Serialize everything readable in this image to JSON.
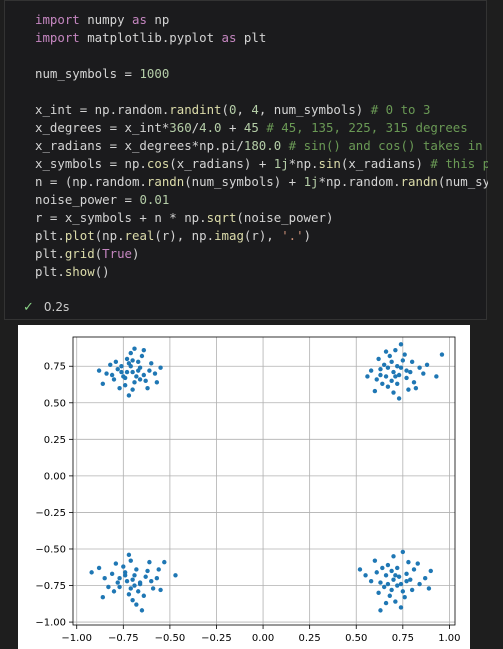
{
  "cell": {
    "code_lines": [
      [
        [
          "kw",
          "import"
        ],
        [
          "op",
          " numpy "
        ],
        [
          "kw",
          "as"
        ],
        [
          "op",
          " np"
        ]
      ],
      [
        [
          "kw",
          "import"
        ],
        [
          "op",
          " matplotlib.pyplot "
        ],
        [
          "kw",
          "as"
        ],
        [
          "op",
          " plt"
        ]
      ],
      [],
      [
        [
          "op",
          "num_symbols = "
        ],
        [
          "num",
          "1000"
        ]
      ],
      [],
      [
        [
          "op",
          "x_int = np.random."
        ],
        [
          "fn",
          "randint"
        ],
        [
          "op",
          "("
        ],
        [
          "num",
          "0"
        ],
        [
          "op",
          ", "
        ],
        [
          "num",
          "4"
        ],
        [
          "op",
          ", num_symbols) "
        ],
        [
          "cm",
          "# 0 to 3"
        ]
      ],
      [
        [
          "op",
          "x_degrees = x_int*"
        ],
        [
          "num",
          "360"
        ],
        [
          "op",
          "/"
        ],
        [
          "num",
          "4.0"
        ],
        [
          "op",
          " + "
        ],
        [
          "num",
          "45"
        ],
        [
          "op",
          " "
        ],
        [
          "cm",
          "# 45, 135, 225, 315 degrees"
        ]
      ],
      [
        [
          "op",
          "x_radians = x_degrees*np.pi/"
        ],
        [
          "num",
          "180.0"
        ],
        [
          "op",
          " "
        ],
        [
          "cm",
          "# sin() and cos() takes in radians"
        ]
      ],
      [
        [
          "op",
          "x_symbols = np."
        ],
        [
          "fn",
          "cos"
        ],
        [
          "op",
          "(x_radians) + "
        ],
        [
          "num",
          "1j"
        ],
        [
          "op",
          "*np."
        ],
        [
          "fn",
          "sin"
        ],
        [
          "op",
          "(x_radians) "
        ],
        [
          "cm",
          "# this produces our QPSK complex symbols"
        ]
      ],
      [
        [
          "op",
          "n = (np.random."
        ],
        [
          "fn",
          "randn"
        ],
        [
          "op",
          "(num_symbols) + "
        ],
        [
          "num",
          "1j"
        ],
        [
          "op",
          "*np.random."
        ],
        [
          "fn",
          "randn"
        ],
        [
          "op",
          "(num_symbols))"
        ]
      ],
      [
        [
          "op",
          "noise_power = "
        ],
        [
          "num",
          "0.01"
        ]
      ],
      [
        [
          "op",
          "r = x_symbols + n * np."
        ],
        [
          "fn",
          "sqrt"
        ],
        [
          "op",
          "(noise_power)"
        ]
      ],
      [
        [
          "op",
          "plt."
        ],
        [
          "fn",
          "plot"
        ],
        [
          "op",
          "(np."
        ],
        [
          "fn",
          "real"
        ],
        [
          "op",
          "(r), np."
        ],
        [
          "fn",
          "imag"
        ],
        [
          "op",
          "(r), "
        ],
        [
          "str",
          "'.'"
        ],
        [
          "op",
          ")"
        ]
      ],
      [
        [
          "op",
          "plt."
        ],
        [
          "fn",
          "grid"
        ],
        [
          "op",
          "("
        ],
        [
          "kw",
          "True"
        ],
        [
          "op",
          ")"
        ]
      ],
      [
        [
          "op",
          "plt."
        ],
        [
          "fn",
          "show"
        ],
        [
          "op",
          "()"
        ]
      ]
    ],
    "exec_time": "0.2s"
  },
  "chart_data": {
    "type": "scatter",
    "title": "",
    "xlabel": "",
    "ylabel": "",
    "xlim": [
      -1.02,
      1.03
    ],
    "ylim": [
      -1.02,
      0.95
    ],
    "xticks": [
      -1.0,
      -0.75,
      -0.5,
      -0.25,
      0.0,
      0.25,
      0.5,
      0.75,
      1.0
    ],
    "xtick_labels": [
      "−1.00",
      "−0.75",
      "−0.50",
      "−0.25",
      "0.00",
      "0.25",
      "0.50",
      "0.75",
      "1.00"
    ],
    "yticks": [
      -1.0,
      -0.75,
      -0.5,
      -0.25,
      0.0,
      0.25,
      0.5,
      0.75
    ],
    "ytick_labels": [
      "−1.00",
      "−0.75",
      "−0.50",
      "−0.25",
      "0.00",
      "0.25",
      "0.50",
      "0.75"
    ],
    "grid": true,
    "marker_color": "#1f77b4",
    "series": [
      {
        "values_note_free": true,
        "points": [
          [
            -0.7,
            0.71
          ],
          [
            -0.75,
            0.68
          ],
          [
            -0.66,
            0.74
          ],
          [
            -0.72,
            0.77
          ],
          [
            -0.64,
            0.69
          ],
          [
            -0.78,
            0.73
          ],
          [
            -0.69,
            0.64
          ],
          [
            -0.73,
            0.8
          ],
          [
            -0.61,
            0.72
          ],
          [
            -0.8,
            0.66
          ],
          [
            -0.67,
            0.78
          ],
          [
            -0.74,
            0.62
          ],
          [
            -0.63,
            0.65
          ],
          [
            -0.71,
            0.84
          ],
          [
            -0.84,
            0.7
          ],
          [
            -0.58,
            0.7
          ],
          [
            -0.76,
            0.75
          ],
          [
            -0.68,
            0.68
          ],
          [
            -0.7,
            0.59
          ],
          [
            -0.65,
            0.82
          ],
          [
            -0.79,
            0.78
          ],
          [
            -0.6,
            0.77
          ],
          [
            -0.73,
            0.71
          ],
          [
            -0.86,
            0.63
          ],
          [
            -0.57,
            0.64
          ],
          [
            -0.69,
            0.87
          ],
          [
            -0.77,
            0.6
          ],
          [
            -0.62,
            0.6
          ],
          [
            -0.82,
            0.76
          ],
          [
            -0.67,
            0.72
          ],
          [
            -0.74,
            0.67
          ],
          [
            -0.71,
            0.75
          ],
          [
            -0.66,
            0.66
          ],
          [
            -0.55,
            0.74
          ],
          [
            -0.88,
            0.72
          ],
          [
            -0.72,
            0.55
          ],
          [
            -0.64,
            0.86
          ],
          [
            -0.81,
            0.69
          ],
          [
            -0.7,
            0.79
          ],
          [
            -0.76,
            0.71
          ],
          [
            0.7,
            0.71
          ],
          [
            0.66,
            0.68
          ],
          [
            0.74,
            0.74
          ],
          [
            0.69,
            0.78
          ],
          [
            0.77,
            0.67
          ],
          [
            0.63,
            0.73
          ],
          [
            0.72,
            0.63
          ],
          [
            0.68,
            0.82
          ],
          [
            0.79,
            0.71
          ],
          [
            0.61,
            0.66
          ],
          [
            0.75,
            0.79
          ],
          [
            0.67,
            0.61
          ],
          [
            0.81,
            0.64
          ],
          [
            0.71,
            0.86
          ],
          [
            0.58,
            0.72
          ],
          [
            0.84,
            0.74
          ],
          [
            0.73,
            0.69
          ],
          [
            0.65,
            0.76
          ],
          [
            0.78,
            0.59
          ],
          [
            0.7,
            0.57
          ],
          [
            0.62,
            0.8
          ],
          [
            0.86,
            0.7
          ],
          [
            0.76,
            0.83
          ],
          [
            0.64,
            0.63
          ],
          [
            0.72,
            0.75
          ],
          [
            0.8,
            0.78
          ],
          [
            0.56,
            0.68
          ],
          [
            0.69,
            0.65
          ],
          [
            0.74,
            0.9
          ],
          [
            0.93,
            0.68
          ],
          [
            0.6,
            0.58
          ],
          [
            0.82,
            0.6
          ],
          [
            0.67,
            0.74
          ],
          [
            0.71,
            0.68
          ],
          [
            0.88,
            0.76
          ],
          [
            0.66,
            0.85
          ],
          [
            0.77,
            0.72
          ],
          [
            0.63,
            0.69
          ],
          [
            0.73,
            0.53
          ],
          [
            0.96,
            0.83
          ],
          [
            -0.7,
            -0.71
          ],
          [
            -0.74,
            -0.68
          ],
          [
            -0.66,
            -0.74
          ],
          [
            -0.71,
            -0.77
          ],
          [
            -0.63,
            -0.69
          ],
          [
            -0.78,
            -0.73
          ],
          [
            -0.68,
            -0.64
          ],
          [
            -0.72,
            -0.81
          ],
          [
            -0.6,
            -0.72
          ],
          [
            -0.81,
            -0.67
          ],
          [
            -0.67,
            -0.79
          ],
          [
            -0.75,
            -0.62
          ],
          [
            -0.62,
            -0.65
          ],
          [
            -0.7,
            -0.85
          ],
          [
            -0.85,
            -0.7
          ],
          [
            -0.57,
            -0.7
          ],
          [
            -0.77,
            -0.76
          ],
          [
            -0.69,
            -0.68
          ],
          [
            -0.71,
            -0.58
          ],
          [
            -0.64,
            -0.82
          ],
          [
            -0.8,
            -0.79
          ],
          [
            -0.59,
            -0.77
          ],
          [
            -0.73,
            -0.72
          ],
          [
            -0.88,
            -0.63
          ],
          [
            -0.56,
            -0.64
          ],
          [
            -0.68,
            -0.88
          ],
          [
            -0.79,
            -0.6
          ],
          [
            -0.61,
            -0.59
          ],
          [
            -0.83,
            -0.76
          ],
          [
            -0.66,
            -0.73
          ],
          [
            -0.74,
            -0.66
          ],
          [
            -0.92,
            -0.66
          ],
          [
            -0.55,
            -0.78
          ],
          [
            -0.72,
            -0.54
          ],
          [
            -0.47,
            -0.68
          ],
          [
            -0.86,
            -0.83
          ],
          [
            -0.65,
            -0.92
          ],
          [
            -0.53,
            -0.59
          ],
          [
            -0.77,
            -0.7
          ],
          [
            -0.69,
            -0.75
          ],
          [
            0.7,
            -0.71
          ],
          [
            0.66,
            -0.68
          ],
          [
            0.74,
            -0.74
          ],
          [
            0.69,
            -0.78
          ],
          [
            0.77,
            -0.67
          ],
          [
            0.63,
            -0.73
          ],
          [
            0.72,
            -0.63
          ],
          [
            0.68,
            -0.82
          ],
          [
            0.79,
            -0.71
          ],
          [
            0.61,
            -0.66
          ],
          [
            0.75,
            -0.79
          ],
          [
            0.67,
            -0.61
          ],
          [
            0.81,
            -0.64
          ],
          [
            0.71,
            -0.86
          ],
          [
            0.58,
            -0.72
          ],
          [
            0.84,
            -0.74
          ],
          [
            0.73,
            -0.69
          ],
          [
            0.65,
            -0.76
          ],
          [
            0.78,
            -0.59
          ],
          [
            0.7,
            -0.55
          ],
          [
            0.62,
            -0.8
          ],
          [
            0.87,
            -0.7
          ],
          [
            0.76,
            -0.83
          ],
          [
            0.64,
            -0.63
          ],
          [
            0.72,
            -0.75
          ],
          [
            0.8,
            -0.78
          ],
          [
            0.55,
            -0.68
          ],
          [
            0.69,
            -0.65
          ],
          [
            0.74,
            -0.9
          ],
          [
            0.6,
            -0.58
          ],
          [
            0.83,
            -0.6
          ],
          [
            0.67,
            -0.74
          ],
          [
            0.71,
            -0.68
          ],
          [
            0.89,
            -0.77
          ],
          [
            0.66,
            -0.87
          ],
          [
            0.77,
            -0.72
          ],
          [
            0.52,
            -0.64
          ],
          [
            0.9,
            -0.65
          ],
          [
            0.63,
            -0.92
          ],
          [
            0.75,
            -0.52
          ]
        ]
      }
    ]
  }
}
